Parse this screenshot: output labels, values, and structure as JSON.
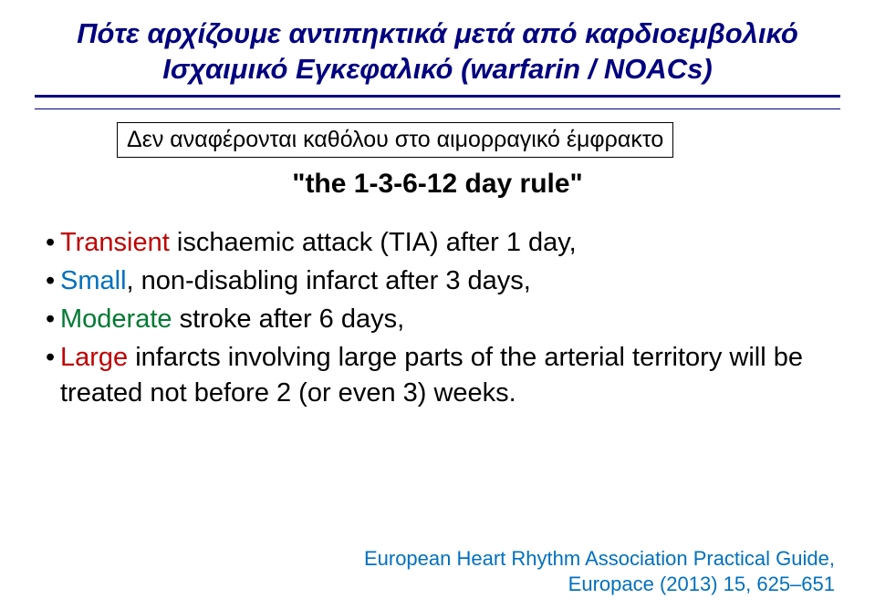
{
  "title": {
    "line1": "Πότε αρχίζουμε αντιπηκτικά μετά από καρδιοεμβολικό",
    "line2": "Ισχαιμικό Εγκεφαλικό (warfarin / NOACs)"
  },
  "note_box": "Δεν αναφέρονται καθόλου στο αιμορραγικό έμφρακτο",
  "rule_heading": "\"the 1-3-6-12 day rule\"",
  "bullets": [
    {
      "prefix": "Transient",
      "rest": " ischaemic attack (TIA) after 1 day,"
    },
    {
      "prefix": "Small",
      "rest": ", non-disabling infarct after 3 days,"
    },
    {
      "prefix": "Moderate",
      "rest": " stroke after 6 days,"
    },
    {
      "prefix": "Large",
      "rest": " infarcts involving large parts of the arterial territory will be treated not before 2 (or even 3) weeks."
    }
  ],
  "colors": {
    "title": "#000080",
    "bullet1": "#c00000",
    "bullet2": "#0070c0",
    "bullet3": "#007a33",
    "bullet4": "#c00000",
    "footer": "#0070c0"
  },
  "footer": {
    "line1": "European Heart Rhythm Association Practical Guide,",
    "line2": "Europace (2013) 15, 625–651"
  }
}
